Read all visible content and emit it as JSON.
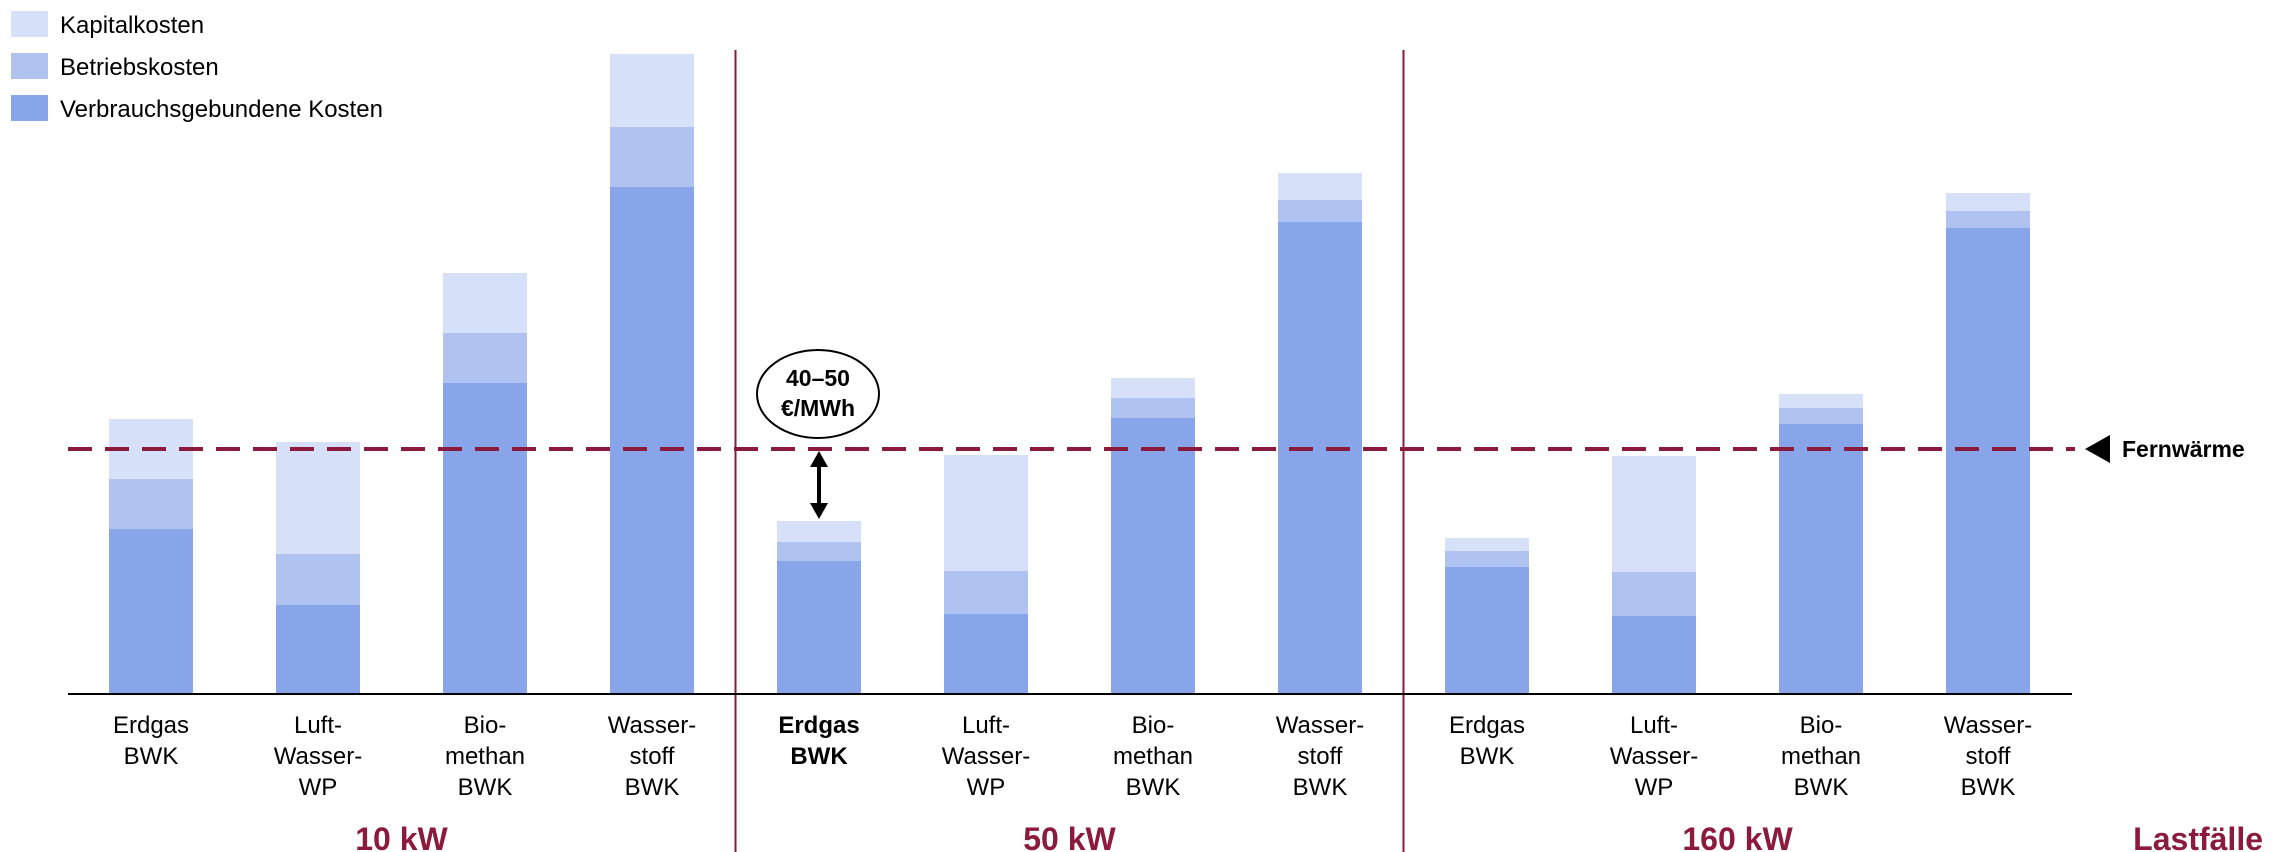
{
  "chart_data": {
    "type": "bar",
    "stacked": true,
    "title": "",
    "xlabel": "",
    "ylabel": "",
    "ylim": [
      0,
      640
    ],
    "grid": false,
    "legend_position": "top-left",
    "colors": {
      "Kapitalkosten": "#d6e0f8",
      "Betriebskosten": "#afc2f0",
      "Verbrauchsgebundene Kosten": "#87a5e8",
      "reference_line": "#8b1a3c",
      "group_label": "#8b1a3c",
      "separator": "#8b1a3c",
      "axis": "#000000"
    },
    "series_names": [
      "Kapitalkosten",
      "Betriebskosten",
      "Verbrauchsgebundene Kosten"
    ],
    "groups": [
      {
        "label": "10 kW",
        "bars": [
          {
            "category": [
              "Erdgas",
              "BWK"
            ],
            "bold": false,
            "verbrauch": 165,
            "betrieb": 50,
            "kapital": 60
          },
          {
            "category": [
              "Luft-",
              "Wasser-",
              "WP"
            ],
            "bold": false,
            "verbrauch": 89,
            "betrieb": 51,
            "kapital": 112
          },
          {
            "category": [
              "Bio-",
              "methan",
              "BWK"
            ],
            "bold": false,
            "verbrauch": 311,
            "betrieb": 50,
            "kapital": 60
          },
          {
            "category": [
              "Wasser-",
              "stoff",
              "BWK"
            ],
            "bold": false,
            "verbrauch": 507,
            "betrieb": 60,
            "kapital": 73
          }
        ]
      },
      {
        "label": "50 kW",
        "bars": [
          {
            "category": [
              "Erdgas",
              "BWK"
            ],
            "bold": true,
            "verbrauch": 133,
            "betrieb": 19,
            "kapital": 21
          },
          {
            "category": [
              "Luft-",
              "Wasser-",
              "WP"
            ],
            "bold": false,
            "verbrauch": 80,
            "betrieb": 43,
            "kapital": 116
          },
          {
            "category": [
              "Bio-",
              "methan",
              "BWK"
            ],
            "bold": false,
            "verbrauch": 276,
            "betrieb": 20,
            "kapital": 20
          },
          {
            "category": [
              "Wasser-",
              "stoff",
              "BWK"
            ],
            "bold": false,
            "verbrauch": 472,
            "betrieb": 22,
            "kapital": 27
          }
        ]
      },
      {
        "label": "160 kW",
        "bars": [
          {
            "category": [
              "Erdgas",
              "BWK"
            ],
            "bold": false,
            "verbrauch": 127,
            "betrieb": 16,
            "kapital": 13
          },
          {
            "category": [
              "Luft-",
              "Wasser-",
              "WP"
            ],
            "bold": false,
            "verbrauch": 78,
            "betrieb": 44,
            "kapital": 116
          },
          {
            "category": [
              "Bio-",
              "methan",
              "BWK"
            ],
            "bold": false,
            "verbrauch": 270,
            "betrieb": 16,
            "kapital": 14
          },
          {
            "category": [
              "Wasser-",
              "stoff",
              "BWK"
            ],
            "bold": false,
            "verbrauch": 466,
            "betrieb": 17,
            "kapital": 18
          }
        ]
      }
    ],
    "reference_line": {
      "label": "Fernwärme",
      "value": 245
    },
    "annotation": {
      "lines": [
        "40–50",
        "€/MWh"
      ]
    },
    "axis_title": "Lastfälle"
  }
}
